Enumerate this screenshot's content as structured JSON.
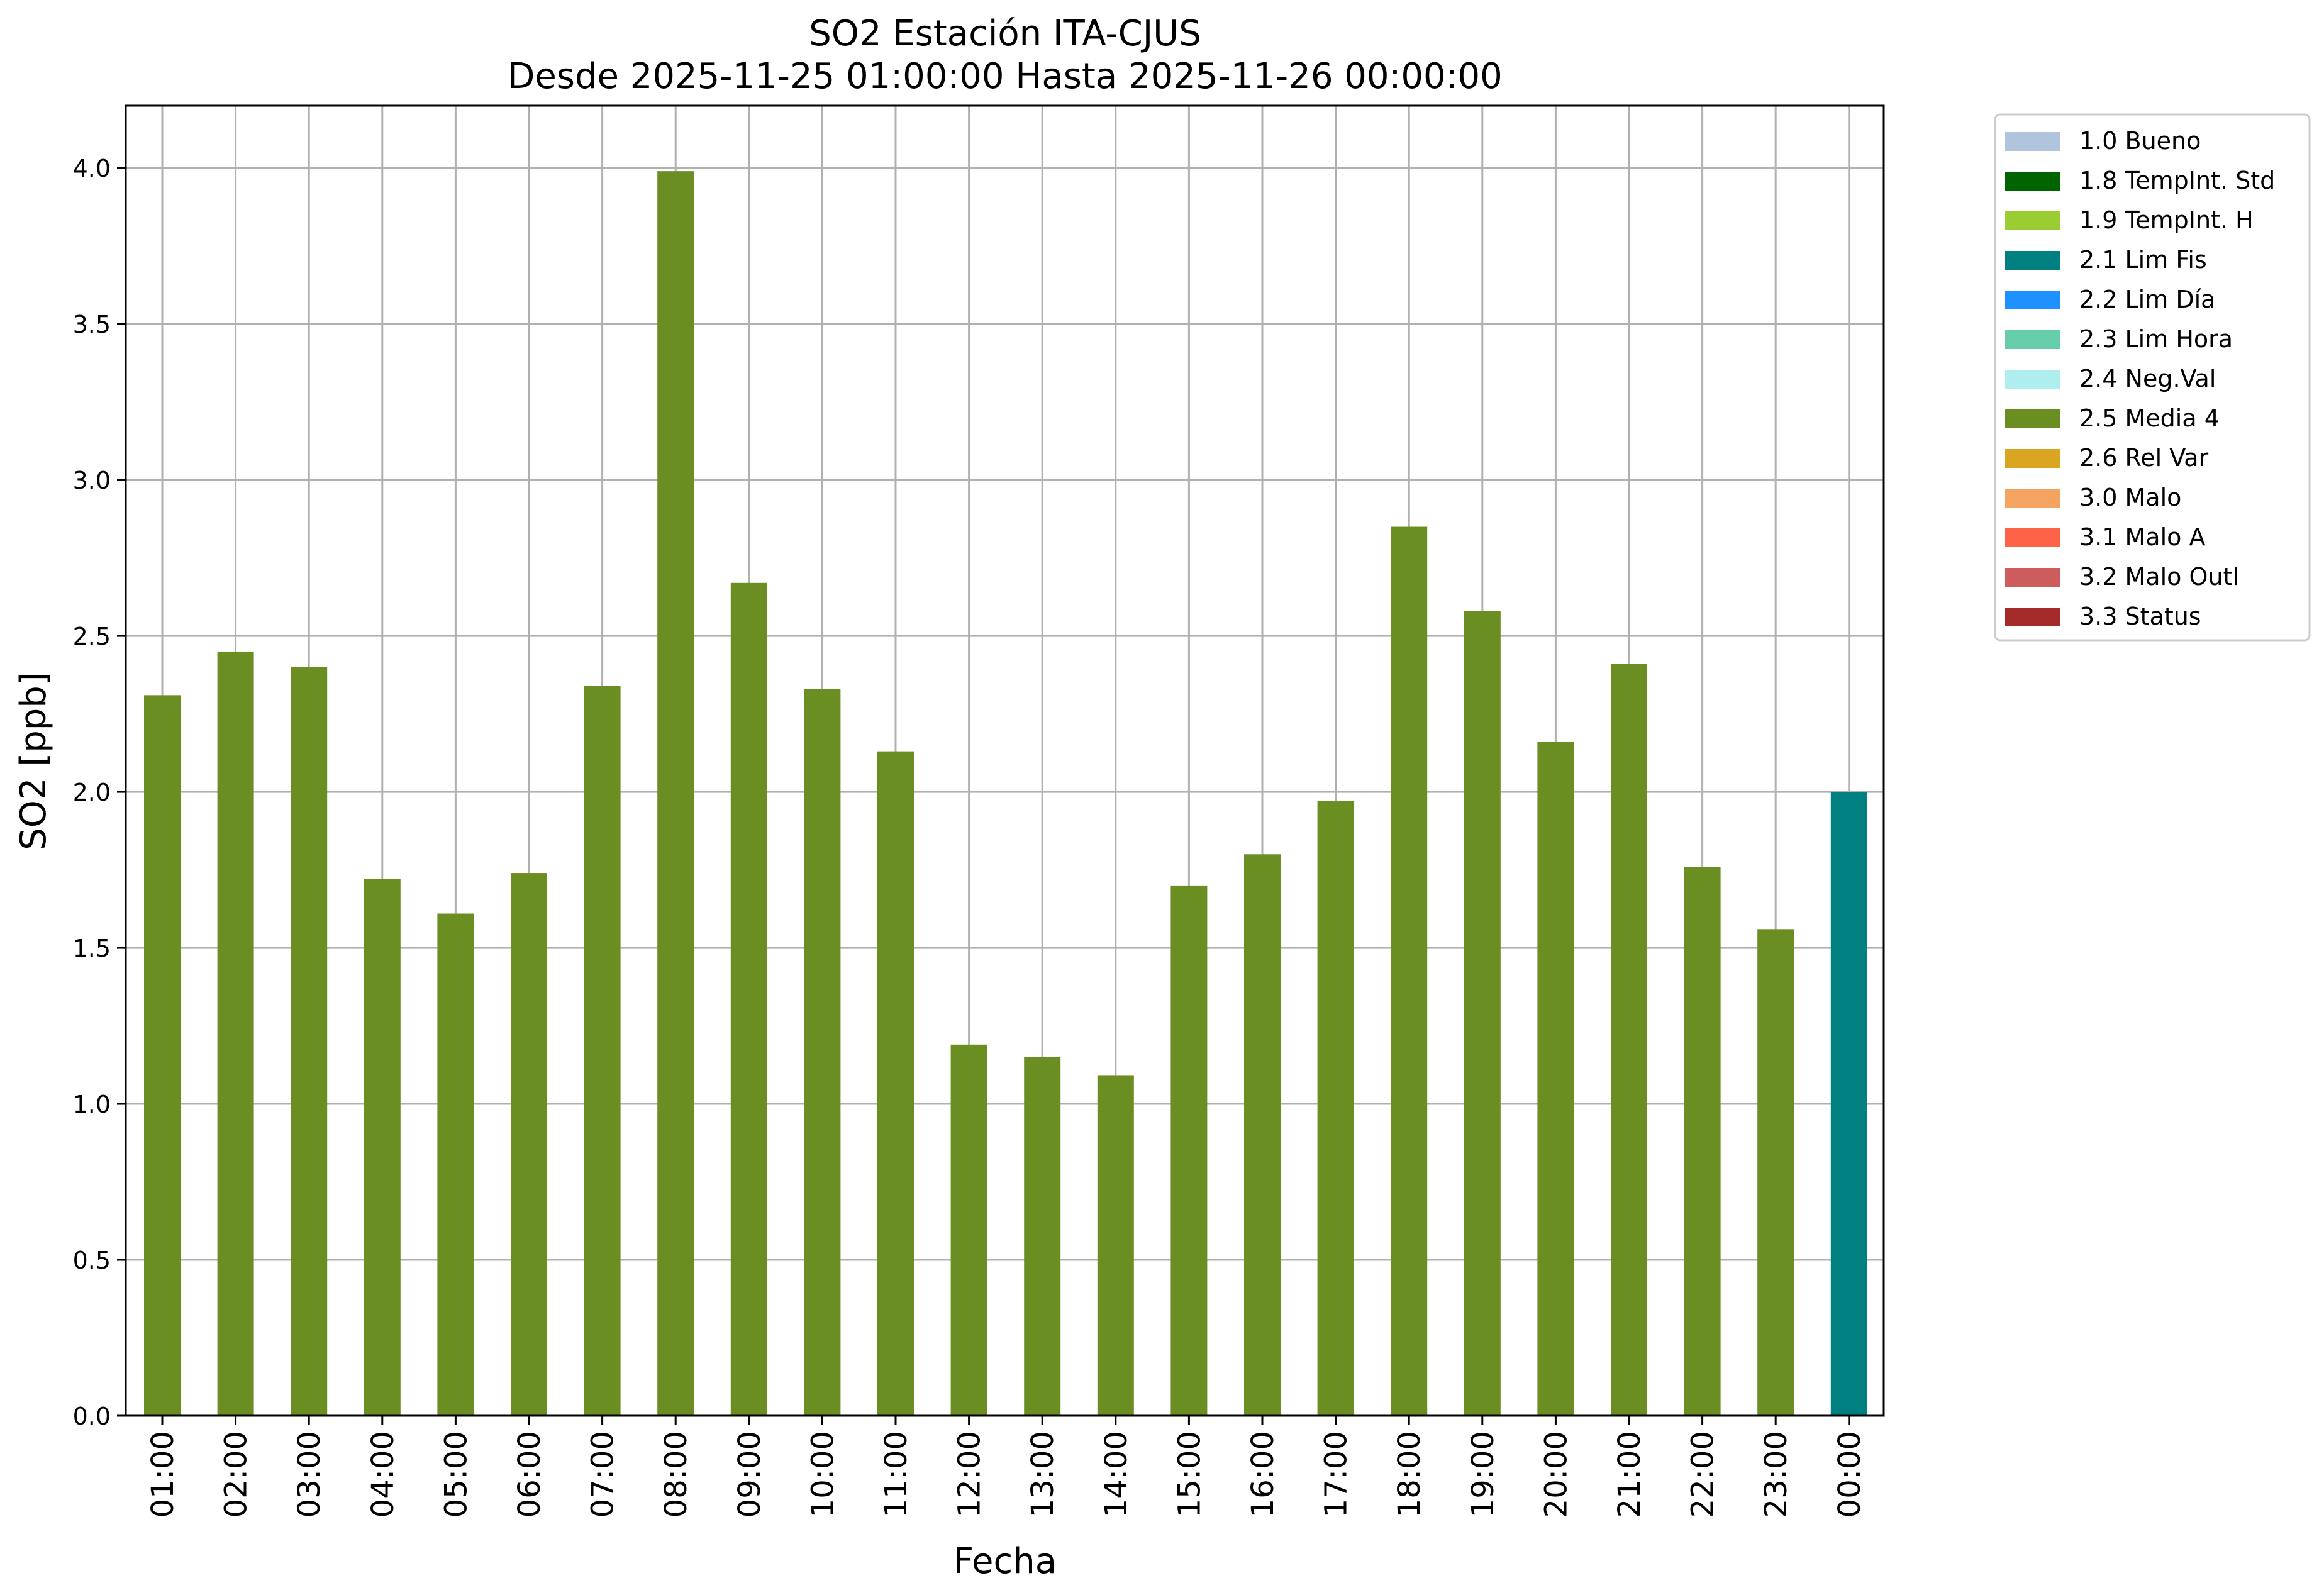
{
  "chart_data": {
    "type": "bar",
    "title": "SO2 Estación ITA-CJUS",
    "subtitle": "Desde 2025-11-25 01:00:00 Hasta 2025-11-26 00:00:00",
    "xlabel": "Fecha",
    "ylabel": "SO2 [ppb]",
    "ylim": [
      0,
      4.2
    ],
    "yticks": [
      "0.0",
      "0.5",
      "1.0",
      "1.5",
      "2.0",
      "2.5",
      "3.0",
      "3.5",
      "4.0"
    ],
    "grid": true,
    "legend_position": "outside-top-right",
    "categories": [
      "01:00",
      "02:00",
      "03:00",
      "04:00",
      "05:00",
      "06:00",
      "07:00",
      "08:00",
      "09:00",
      "10:00",
      "11:00",
      "12:00",
      "13:00",
      "14:00",
      "15:00",
      "16:00",
      "17:00",
      "18:00",
      "19:00",
      "20:00",
      "21:00",
      "22:00",
      "23:00",
      "00:00"
    ],
    "values": [
      2.31,
      2.45,
      2.4,
      1.72,
      1.61,
      1.74,
      2.34,
      3.99,
      2.67,
      2.33,
      2.13,
      1.19,
      1.15,
      1.09,
      1.7,
      1.8,
      1.97,
      2.85,
      2.58,
      2.16,
      2.41,
      1.76,
      1.56,
      2.0
    ],
    "flags": [
      "2.5 Media 4",
      "2.5 Media 4",
      "2.5 Media 4",
      "2.5 Media 4",
      "2.5 Media 4",
      "2.5 Media 4",
      "2.5 Media 4",
      "2.5 Media 4",
      "2.5 Media 4",
      "2.5 Media 4",
      "2.5 Media 4",
      "2.5 Media 4",
      "2.5 Media 4",
      "2.5 Media 4",
      "2.5 Media 4",
      "2.5 Media 4",
      "2.5 Media 4",
      "2.5 Media 4",
      "2.5 Media 4",
      "2.5 Media 4",
      "2.5 Media 4",
      "2.5 Media 4",
      "2.5 Media 4",
      "2.1 Lim Fis"
    ],
    "legend": [
      {
        "label": "1.0 Bueno",
        "color": "#b0c4de"
      },
      {
        "label": "1.8 TempInt. Std",
        "color": "#006400"
      },
      {
        "label": "1.9 TempInt. H",
        "color": "#9acd32"
      },
      {
        "label": "2.1 Lim Fis",
        "color": "#008080"
      },
      {
        "label": "2.2 Lim Día",
        "color": "#1e90ff"
      },
      {
        "label": "2.3 Lim Hora",
        "color": "#66cdaa"
      },
      {
        "label": "2.4 Neg.Val",
        "color": "#afeeee"
      },
      {
        "label": "2.5 Media 4",
        "color": "#6b8e23"
      },
      {
        "label": "2.6 Rel Var",
        "color": "#daa520"
      },
      {
        "label": "3.0 Malo",
        "color": "#f4a460"
      },
      {
        "label": "3.1 Malo A",
        "color": "#ff6347"
      },
      {
        "label": "3.2 Malo Outl",
        "color": "#cd5c5c"
      },
      {
        "label": "3.3 Status",
        "color": "#a52a2a"
      }
    ]
  }
}
